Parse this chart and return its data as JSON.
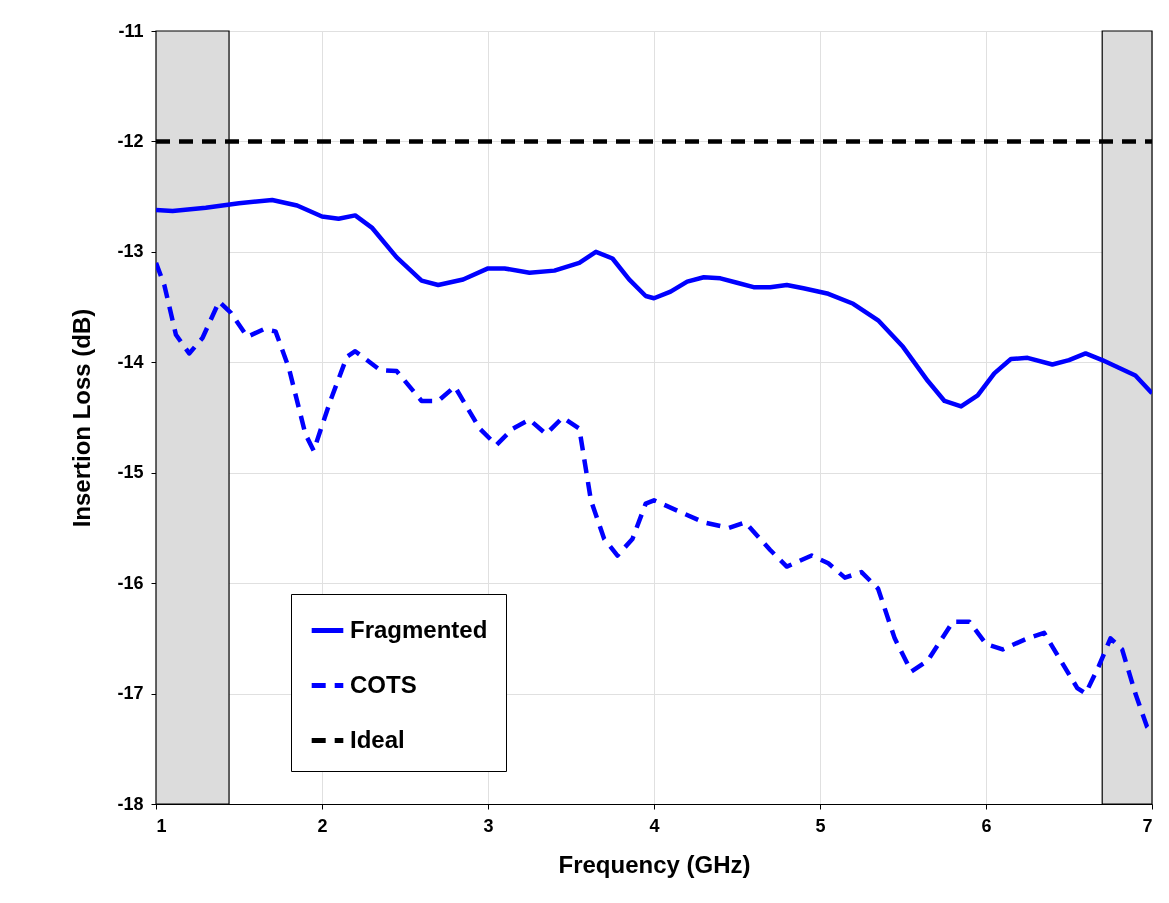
{
  "chart_data": {
    "type": "line",
    "xlabel": "Frequency (GHz)",
    "ylabel": "Insertion Loss (dB)",
    "xlim": [
      1,
      7
    ],
    "ylim": [
      -18,
      -11
    ],
    "xticks": [
      1,
      2,
      3,
      4,
      5,
      6,
      7
    ],
    "yticks": [
      -18,
      -17,
      -16,
      -15,
      -14,
      -13,
      -12,
      -11
    ],
    "grid": true,
    "legend": "bottom left",
    "bands": [
      {
        "axis": "x",
        "from": 1,
        "to": 1.44,
        "color": "#dcdcdc"
      },
      {
        "axis": "x",
        "from": 6.7,
        "to": 7,
        "color": "#dcdcdc"
      }
    ],
    "series": [
      {
        "name": "Fragmented",
        "color": "#0000ff",
        "line_style": "solid",
        "x": [
          1.0,
          1.1,
          1.3,
          1.5,
          1.7,
          1.85,
          2.0,
          2.1,
          2.2,
          2.3,
          2.45,
          2.6,
          2.7,
          2.85,
          3.0,
          3.1,
          3.25,
          3.4,
          3.55,
          3.65,
          3.75,
          3.85,
          3.95,
          4.0,
          4.1,
          4.2,
          4.3,
          4.4,
          4.5,
          4.6,
          4.7,
          4.8,
          4.9,
          5.05,
          5.2,
          5.35,
          5.5,
          5.65,
          5.75,
          5.85,
          5.95,
          6.05,
          6.15,
          6.25,
          6.4,
          6.5,
          6.6,
          6.7,
          6.8,
          6.9,
          7.0
        ],
        "values": [
          -12.62,
          -12.63,
          -12.6,
          -12.56,
          -12.53,
          -12.58,
          -12.68,
          -12.7,
          -12.67,
          -12.78,
          -13.05,
          -13.26,
          -13.3,
          -13.25,
          -13.15,
          -13.15,
          -13.19,
          -13.17,
          -13.1,
          -13.0,
          -13.06,
          -13.25,
          -13.4,
          -13.42,
          -13.36,
          -13.27,
          -13.23,
          -13.24,
          -13.28,
          -13.32,
          -13.32,
          -13.3,
          -13.33,
          -13.38,
          -13.47,
          -13.62,
          -13.86,
          -14.17,
          -14.35,
          -14.4,
          -14.3,
          -14.1,
          -13.97,
          -13.96,
          -14.02,
          -13.98,
          -13.92,
          -13.98,
          -14.05,
          -14.12,
          -14.28
        ]
      },
      {
        "name": "COTS",
        "color": "#0000ff",
        "line_style": "dashed",
        "x": [
          1.0,
          1.05,
          1.12,
          1.2,
          1.28,
          1.38,
          1.45,
          1.55,
          1.65,
          1.72,
          1.8,
          1.9,
          1.95,
          2.05,
          2.15,
          2.2,
          2.35,
          2.45,
          2.6,
          2.7,
          2.8,
          2.95,
          3.05,
          3.15,
          3.25,
          3.35,
          3.45,
          3.55,
          3.62,
          3.7,
          3.78,
          3.87,
          3.95,
          4.0,
          4.15,
          4.3,
          4.45,
          4.55,
          4.7,
          4.8,
          4.95,
          5.05,
          5.15,
          5.25,
          5.35,
          5.45,
          5.55,
          5.65,
          5.8,
          5.9,
          6.0,
          6.1,
          6.25,
          6.35,
          6.45,
          6.55,
          6.6,
          6.68,
          6.75,
          6.82,
          6.9,
          6.97,
          7.0
        ],
        "values": [
          -13.1,
          -13.3,
          -13.75,
          -13.92,
          -13.78,
          -13.45,
          -13.55,
          -13.77,
          -13.7,
          -13.72,
          -14.05,
          -14.65,
          -14.8,
          -14.35,
          -13.95,
          -13.9,
          -14.07,
          -14.08,
          -14.35,
          -14.35,
          -14.22,
          -14.6,
          -14.75,
          -14.6,
          -14.52,
          -14.65,
          -14.5,
          -14.6,
          -15.25,
          -15.6,
          -15.75,
          -15.6,
          -15.28,
          -15.25,
          -15.35,
          -15.45,
          -15.5,
          -15.45,
          -15.7,
          -15.85,
          -15.75,
          -15.82,
          -15.95,
          -15.9,
          -16.05,
          -16.5,
          -16.8,
          -16.7,
          -16.35,
          -16.35,
          -16.55,
          -16.6,
          -16.5,
          -16.45,
          -16.7,
          -16.95,
          -17.0,
          -16.75,
          -16.5,
          -16.6,
          -17.0,
          -17.3,
          -17.35
        ]
      },
      {
        "name": "Ideal",
        "color": "#000000",
        "line_style": "dashed",
        "x": [
          1,
          7
        ],
        "values": [
          -12,
          -12
        ]
      }
    ]
  }
}
